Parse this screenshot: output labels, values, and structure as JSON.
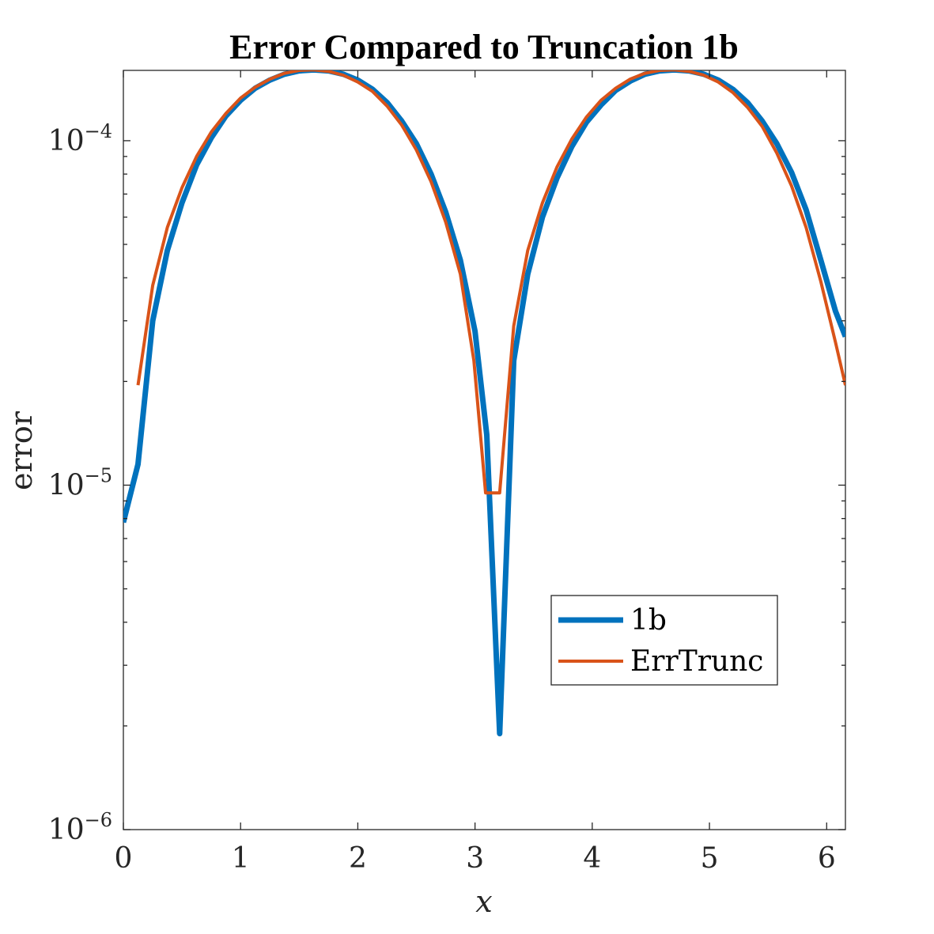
{
  "chart_data": {
    "type": "line",
    "title": "Error Compared to Truncation 1b",
    "xlabel": "x",
    "ylabel": "error",
    "xlim": [
      0,
      6.16
    ],
    "ylim": [
      1e-06,
      0.00016
    ],
    "yscale": "log",
    "grid": false,
    "legend_position": "bottom-right",
    "xticks": [
      {
        "value": 0,
        "label": "0"
      },
      {
        "value": 1,
        "label": "1"
      },
      {
        "value": 2,
        "label": "2"
      },
      {
        "value": 3,
        "label": "3"
      },
      {
        "value": 4,
        "label": "4"
      },
      {
        "value": 5,
        "label": "5"
      },
      {
        "value": 6,
        "label": "6"
      }
    ],
    "yticks": [
      {
        "value": 1e-06,
        "base": "10",
        "exp": "−6"
      },
      {
        "value": 1e-05,
        "base": "10",
        "exp": "−5"
      },
      {
        "value": 0.0001,
        "base": "10",
        "exp": "−4"
      }
    ],
    "series": [
      {
        "name": "1b",
        "color": "#0072BD",
        "linewidth": 7,
        "x": [
          0,
          0.125,
          0.25,
          0.375,
          0.5,
          0.625,
          0.75,
          0.875,
          1.0,
          1.125,
          1.25,
          1.375,
          1.5,
          1.625,
          1.75,
          1.875,
          2.0,
          2.125,
          2.25,
          2.375,
          2.5,
          2.625,
          2.75,
          2.875,
          3.0,
          3.1,
          3.21,
          3.33,
          3.45,
          3.575,
          3.7,
          3.825,
          3.95,
          4.075,
          4.2,
          4.325,
          4.45,
          4.575,
          4.7,
          4.825,
          4.95,
          5.075,
          5.2,
          5.325,
          5.45,
          5.575,
          5.7,
          5.825,
          5.95,
          6.075,
          6.16
        ],
        "y": [
          7.8e-06,
          1.15e-05,
          3e-05,
          4.8e-05,
          6.6e-05,
          8.5e-05,
          0.000102,
          0.000118,
          0.000131,
          0.000142,
          0.00015,
          0.000156,
          0.0001595,
          0.0001605,
          0.0001595,
          0.000156,
          0.00015,
          0.000141,
          0.000129,
          0.000114,
          9.8e-05,
          8e-05,
          6.2e-05,
          4.5e-05,
          2.8e-05,
          1.4e-05,
          1.9e-06,
          2.3e-05,
          4.1e-05,
          6e-05,
          7.8e-05,
          9.6e-05,
          0.000113,
          0.000127,
          0.00014,
          0.000149,
          0.000156,
          0.0001595,
          0.0001605,
          0.0001595,
          0.000156,
          0.00015,
          0.000141,
          0.000129,
          0.000114,
          9.8e-05,
          8.1e-05,
          6.3e-05,
          4.5e-05,
          3.2e-05,
          2.7e-05
        ]
      },
      {
        "name": "ErrTrunc",
        "color": "#D95319",
        "linewidth": 4,
        "x": [
          0.125,
          0.25,
          0.375,
          0.5,
          0.625,
          0.75,
          0.875,
          1.0,
          1.125,
          1.25,
          1.375,
          1.5,
          1.625,
          1.75,
          1.875,
          2.0,
          2.125,
          2.25,
          2.375,
          2.5,
          2.625,
          2.75,
          2.875,
          2.99,
          3.09,
          3.21,
          3.33,
          3.45,
          3.575,
          3.7,
          3.825,
          3.95,
          4.075,
          4.2,
          4.325,
          4.45,
          4.575,
          4.7,
          4.825,
          4.95,
          5.075,
          5.2,
          5.325,
          5.45,
          5.575,
          5.7,
          5.825,
          5.95,
          6.075,
          6.16
        ],
        "y": [
          1.95e-05,
          3.8e-05,
          5.6e-05,
          7.3e-05,
          9e-05,
          0.000106,
          0.00012,
          0.000133,
          0.000143,
          0.000151,
          0.000157,
          0.00016,
          0.0001605,
          0.000159,
          0.000155,
          0.000148,
          0.000139,
          0.000126,
          0.000111,
          9.4e-05,
          7.6e-05,
          5.8e-05,
          4.1e-05,
          2.3e-05,
          9.5e-06,
          9.5e-06,
          2.9e-05,
          4.8e-05,
          6.6e-05,
          8.4e-05,
          0.000101,
          0.000117,
          0.000131,
          0.000142,
          0.000151,
          0.000157,
          0.00016,
          0.0001605,
          0.000159,
          0.000155,
          0.000148,
          0.000138,
          0.000125,
          0.00011,
          9.2e-05,
          7.4e-05,
          5.6e-05,
          3.9e-05,
          2.6e-05,
          1.95e-05
        ]
      }
    ]
  }
}
